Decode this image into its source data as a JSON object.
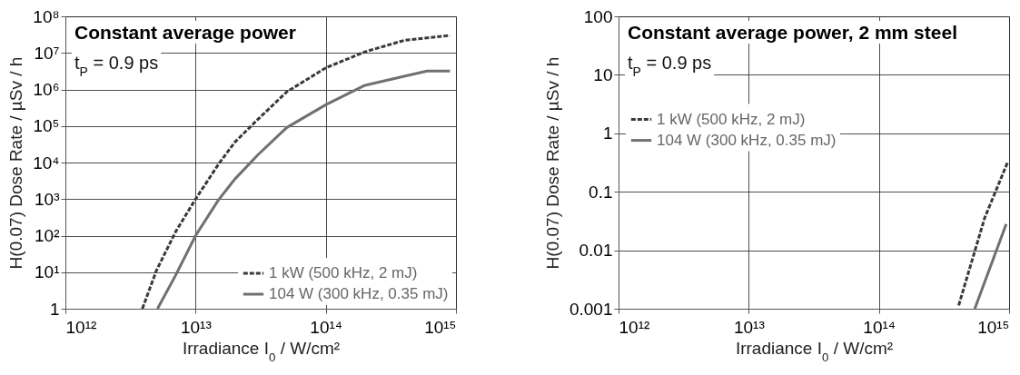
{
  "chart_data": [
    {
      "type": "line",
      "title": "Constant average power",
      "annotations": [
        "t$_{P}$ = 0.9 ps"
      ],
      "xlabel": "Irradiance I$_{0}$ / W/cm²",
      "ylabel": "H(0.07) Dose Rate  /  µSv / h",
      "log": "xy",
      "grid": true,
      "legend": "bottom right",
      "xlim": [
        1000000000000.0,
        1000000000000000.0
      ],
      "ylim": [
        1,
        100000000.0
      ],
      "xticks": [
        {
          "value": 1000000000000.0,
          "label": "10¹²"
        },
        {
          "value": 10000000000000.0,
          "label": "10¹³"
        },
        {
          "value": 100000000000000.0,
          "label": "10¹⁴"
        },
        {
          "value": 1000000000000000.0,
          "label": "10¹⁵"
        }
      ],
      "yticks": [
        1,
        {
          "value": 10,
          "label": "10¹"
        },
        {
          "value": 100,
          "label": "10²"
        },
        {
          "value": 1000,
          "label": "10³"
        },
        {
          "value": 10000,
          "label": "10⁴"
        },
        {
          "value": 100000,
          "label": "10⁵"
        },
        {
          "value": 1000000,
          "label": "10⁶"
        },
        {
          "value": 10000000,
          "label": "10⁷"
        },
        {
          "value": 100000000,
          "label": "10⁸"
        }
      ],
      "series": [
        {
          "name": "1 kW (500 kHz, 2 mJ)",
          "color": "#3a3a3a",
          "line_style": "dashed",
          "x": [
            3900000000000.0,
            5000000000000.0,
            7000000000000.0,
            10000000000000.0,
            15000000000000.0,
            20000000000000.0,
            30000000000000.0,
            50000000000000.0,
            100000000000000.0,
            200000000000000.0,
            400000000000000.0,
            900000000000000.0
          ],
          "values": [
            1,
            11,
            125,
            1000,
            9000,
            36000,
            150000,
            850000,
            3900000,
            10700000,
            22000000,
            30000000
          ]
        },
        {
          "name": "104 W (300 kHz, 0.35 mJ)",
          "color": "#707070",
          "line_style": "solid",
          "x": [
            5100000000000.0,
            7000000000000.0,
            10000000000000.0,
            15000000000000.0,
            20000000000000.0,
            30000000000000.0,
            50000000000000.0,
            100000000000000.0,
            200000000000000.0,
            400000000000000.0,
            600000000000000.0,
            900000000000000.0
          ],
          "values": [
            1,
            8,
            100,
            950,
            3500,
            16000,
            90000,
            380000,
            1300000,
            2300000,
            3200000,
            3200000
          ]
        }
      ]
    },
    {
      "type": "line",
      "title": "Constant average power, 2 mm steel",
      "annotations": [
        "t$_{P}$ = 0.9 ps"
      ],
      "xlabel": "Irradiance I$_{0}$ / W/cm²",
      "ylabel": "H(0.07) Dose Rate  /  µSv / h",
      "log": "xy",
      "grid": true,
      "legend": "left",
      "xlim": [
        1000000000000.0,
        1000000000000000.0
      ],
      "ylim": [
        0.001,
        100
      ],
      "xticks": [
        {
          "value": 1000000000000.0,
          "label": "10¹²"
        },
        {
          "value": 10000000000000.0,
          "label": "10¹³"
        },
        {
          "value": 100000000000000.0,
          "label": "10¹⁴"
        },
        {
          "value": 1000000000000000.0,
          "label": "10¹⁵"
        }
      ],
      "yticks": [
        0.001,
        0.01,
        0.1,
        1,
        10,
        100
      ],
      "series": [
        {
          "name": "1 kW (500 kHz, 2 mJ)",
          "color": "#3a3a3a",
          "line_style": "dashed",
          "x": [
            410000000000000.0,
            650000000000000.0,
            980000000000000.0
          ],
          "values": [
            0.00114,
            0.036,
            0.33
          ]
        },
        {
          "name": "104 W (300 kHz, 0.35 mJ)",
          "color": "#707070",
          "line_style": "solid",
          "x": [
            545000000000000.0,
            950000000000000.0
          ],
          "values": [
            0.001,
            0.028
          ]
        }
      ]
    }
  ]
}
